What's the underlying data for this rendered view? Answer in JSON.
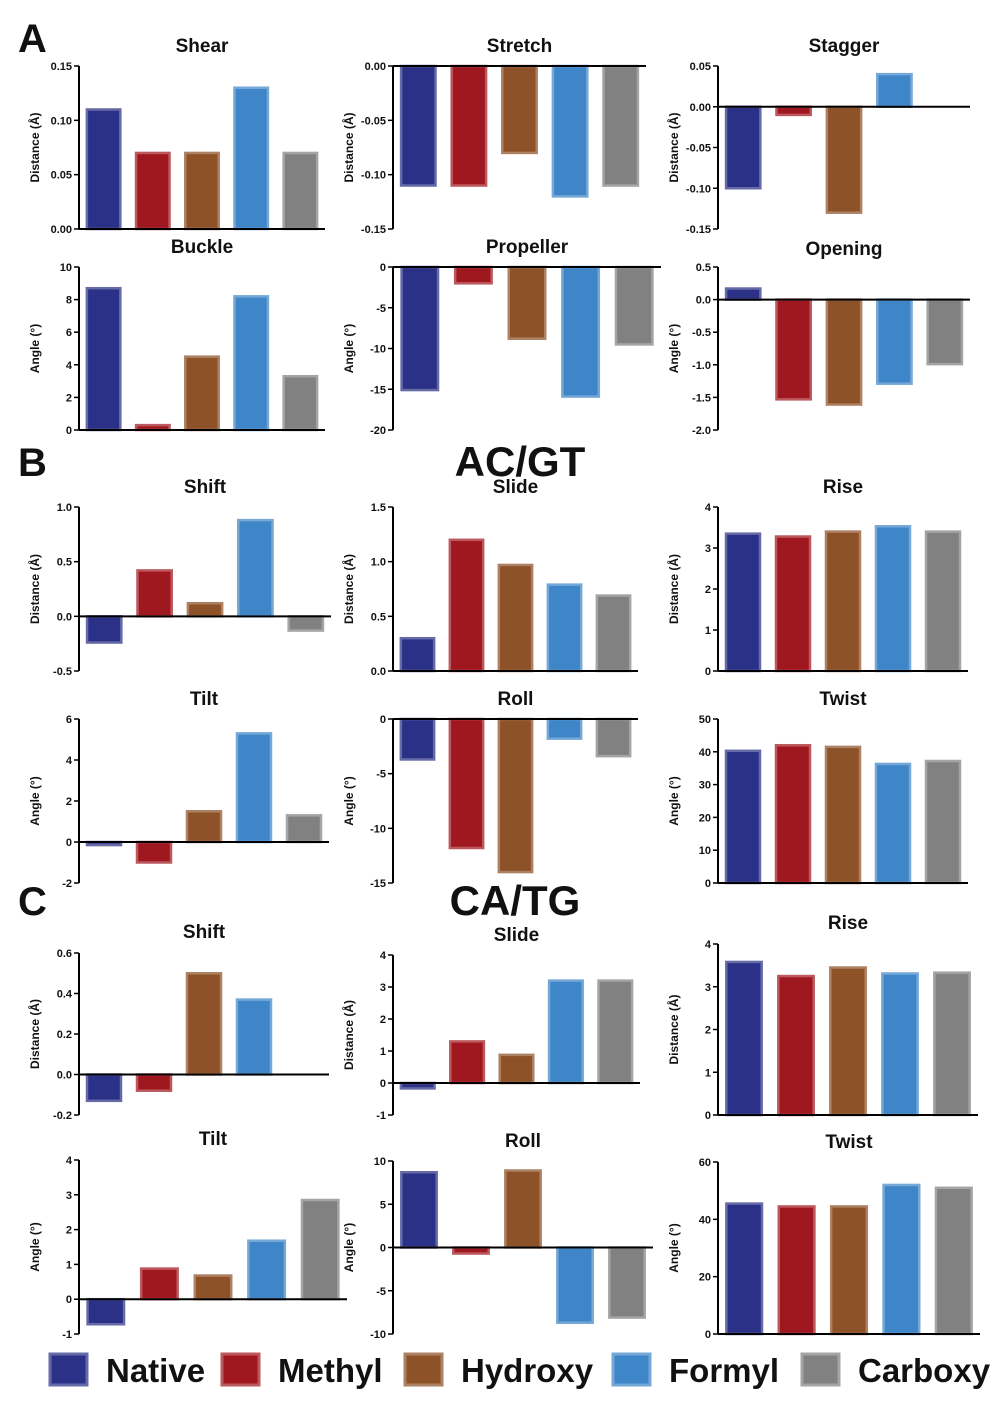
{
  "panel_labels": [
    "A",
    "B",
    "C"
  ],
  "headings": [
    "AC/GT",
    "CA/TG"
  ],
  "legend": [
    {
      "name": "Native",
      "color": "#2b3186"
    },
    {
      "name": "Methyl",
      "color": "#a0181f"
    },
    {
      "name": "Hydroxy",
      "color": "#8d5228"
    },
    {
      "name": "Formyl",
      "color": "#3f86c8"
    },
    {
      "name": "Carboxy",
      "color": "#818181"
    }
  ],
  "chart_data": [
    {
      "type": "bar",
      "group": "A",
      "title": "Shear",
      "ylabel": "Distance (Å)",
      "ylim": [
        0,
        0.15
      ],
      "yticks": [
        "0.00",
        "0.05",
        "0.10",
        "0.15"
      ],
      "categories": [
        "Native",
        "Methyl",
        "Hydroxy",
        "Formyl",
        "Carboxy"
      ],
      "values": [
        0.11,
        0.07,
        0.07,
        0.13,
        0.07
      ]
    },
    {
      "type": "bar",
      "group": "A",
      "title": "Stretch",
      "ylabel": "Distance (Å)",
      "ylim": [
        -0.15,
        0
      ],
      "yticks": [
        "-0.15",
        "-0.10",
        "-0.05",
        "0.00"
      ],
      "categories": [
        "Native",
        "Methyl",
        "Hydroxy",
        "Formyl",
        "Carboxy"
      ],
      "values": [
        -0.11,
        -0.11,
        -0.08,
        -0.12,
        -0.11
      ]
    },
    {
      "type": "bar",
      "group": "A",
      "title": "Stagger",
      "ylabel": "Distance (Å)",
      "ylim": [
        -0.15,
        0.05
      ],
      "yticks": [
        "-0.15",
        "-0.10",
        "-0.05",
        "0.00",
        "0.05"
      ],
      "categories": [
        "Native",
        "Methyl",
        "Hydroxy",
        "Formyl",
        "Carboxy"
      ],
      "values": [
        -0.1,
        -0.01,
        -0.13,
        0.04,
        0
      ]
    },
    {
      "type": "bar",
      "group": "A",
      "title": "Buckle",
      "ylabel": "Angle (°)",
      "ylim": [
        0,
        10
      ],
      "yticks": [
        "0",
        "2",
        "4",
        "6",
        "8",
        "10"
      ],
      "categories": [
        "Native",
        "Methyl",
        "Hydroxy",
        "Formyl",
        "Carboxy"
      ],
      "values": [
        8.7,
        0.3,
        4.5,
        8.2,
        3.3
      ]
    },
    {
      "type": "bar",
      "group": "A",
      "title": "Propeller",
      "ylabel": "Angle (°)",
      "ylim": [
        -20,
        0
      ],
      "yticks": [
        "-20",
        "-15",
        "-10",
        "-5",
        "0"
      ],
      "categories": [
        "Native",
        "Methyl",
        "Hydroxy",
        "Formyl",
        "Carboxy"
      ],
      "values": [
        -15.1,
        -2.0,
        -8.8,
        -15.9,
        -9.5
      ]
    },
    {
      "type": "bar",
      "group": "A",
      "title": "Opening",
      "ylabel": "Angle (°)",
      "ylim": [
        -2.0,
        0.5
      ],
      "yticks": [
        "-2.0",
        "-1.5",
        "-1.0",
        "-0.5",
        "0.0",
        "0.5"
      ],
      "categories": [
        "Native",
        "Methyl",
        "Hydroxy",
        "Formyl",
        "Carboxy"
      ],
      "values": [
        0.17,
        -1.53,
        -1.61,
        -1.29,
        -0.99
      ]
    },
    {
      "type": "bar",
      "group": "B",
      "title": "Shift",
      "ylabel": "Distance (Å)",
      "ylim": [
        -0.5,
        1.0
      ],
      "yticks": [
        "-0.5",
        "0.0",
        "0.5",
        "1.0"
      ],
      "categories": [
        "Native",
        "Methyl",
        "Hydroxy",
        "Formyl",
        "Carboxy"
      ],
      "values": [
        -0.24,
        0.42,
        0.12,
        0.88,
        -0.13
      ]
    },
    {
      "type": "bar",
      "group": "B",
      "title": "Slide",
      "ylabel": "Distance (Å)",
      "ylim": [
        0,
        1.5
      ],
      "yticks": [
        "0.0",
        "0.5",
        "1.0",
        "1.5"
      ],
      "categories": [
        "Native",
        "Methyl",
        "Hydroxy",
        "Formyl",
        "Carboxy"
      ],
      "values": [
        0.3,
        1.2,
        0.97,
        0.79,
        0.69
      ]
    },
    {
      "type": "bar",
      "group": "B",
      "title": "Rise",
      "ylabel": "Distance (Å)",
      "ylim": [
        0,
        4
      ],
      "yticks": [
        "0",
        "1",
        "2",
        "3",
        "4"
      ],
      "categories": [
        "Native",
        "Methyl",
        "Hydroxy",
        "Formyl",
        "Carboxy"
      ],
      "values": [
        3.35,
        3.28,
        3.4,
        3.53,
        3.4
      ]
    },
    {
      "type": "bar",
      "group": "B",
      "title": "Tilt",
      "ylabel": "Angle (°)",
      "ylim": [
        -2,
        6
      ],
      "yticks": [
        "-2",
        "0",
        "2",
        "4",
        "6"
      ],
      "categories": [
        "Native",
        "Methyl",
        "Hydroxy",
        "Formyl",
        "Carboxy"
      ],
      "values": [
        -0.15,
        -1.0,
        1.5,
        5.3,
        1.3
      ]
    },
    {
      "type": "bar",
      "group": "B",
      "title": "Roll",
      "ylabel": "Angle (°)",
      "ylim": [
        -15,
        0
      ],
      "yticks": [
        "-15",
        "-10",
        "-5",
        "0"
      ],
      "categories": [
        "Native",
        "Methyl",
        "Hydroxy",
        "Formyl",
        "Carboxy"
      ],
      "values": [
        -3.7,
        -11.8,
        -14.0,
        -1.8,
        -3.4
      ]
    },
    {
      "type": "bar",
      "group": "B",
      "title": "Twist",
      "ylabel": "Angle (°)",
      "ylim": [
        0,
        50
      ],
      "yticks": [
        "0",
        "10",
        "20",
        "30",
        "40",
        "50"
      ],
      "categories": [
        "Native",
        "Methyl",
        "Hydroxy",
        "Formyl",
        "Carboxy"
      ],
      "values": [
        40.3,
        42.0,
        41.5,
        36.3,
        37.2
      ]
    },
    {
      "type": "bar",
      "group": "C",
      "title": "Shift",
      "ylabel": "Distance (Å)",
      "ylim": [
        -0.2,
        0.6
      ],
      "yticks": [
        "-0.2",
        "0.0",
        "0.2",
        "0.4",
        "0.6"
      ],
      "categories": [
        "Native",
        "Methyl",
        "Hydroxy",
        "Formyl",
        "Carboxy"
      ],
      "values": [
        -0.13,
        -0.08,
        0.5,
        0.37,
        0
      ]
    },
    {
      "type": "bar",
      "group": "C",
      "title": "Slide",
      "ylabel": "Distance (Å)",
      "ylim": [
        -1,
        4
      ],
      "yticks": [
        "-1",
        "0",
        "1",
        "2",
        "3",
        "4"
      ],
      "categories": [
        "Native",
        "Methyl",
        "Hydroxy",
        "Formyl",
        "Carboxy"
      ],
      "values": [
        -0.17,
        1.3,
        0.88,
        3.2,
        3.2
      ]
    },
    {
      "type": "bar",
      "group": "C",
      "title": "Rise",
      "ylabel": "Distance (Å)",
      "ylim": [
        0,
        4
      ],
      "yticks": [
        "0",
        "1",
        "2",
        "3",
        "4"
      ],
      "categories": [
        "Native",
        "Methyl",
        "Hydroxy",
        "Formyl",
        "Carboxy"
      ],
      "values": [
        3.58,
        3.25,
        3.45,
        3.31,
        3.33
      ]
    },
    {
      "type": "bar",
      "group": "C",
      "title": "Tilt",
      "ylabel": "Angle (°)",
      "ylim": [
        -1,
        4
      ],
      "yticks": [
        "-1",
        "0",
        "1",
        "2",
        "3",
        "4"
      ],
      "categories": [
        "Native",
        "Methyl",
        "Hydroxy",
        "Formyl",
        "Carboxy"
      ],
      "values": [
        -0.72,
        0.88,
        0.68,
        1.68,
        2.85
      ]
    },
    {
      "type": "bar",
      "group": "C",
      "title": "Roll",
      "ylabel": "Angle (°)",
      "ylim": [
        -10,
        10
      ],
      "yticks": [
        "-10",
        "-5",
        "0",
        "5",
        "10"
      ],
      "categories": [
        "Native",
        "Methyl",
        "Hydroxy",
        "Formyl",
        "Carboxy"
      ],
      "values": [
        8.7,
        -0.7,
        8.9,
        -8.7,
        -8.1
      ]
    },
    {
      "type": "bar",
      "group": "C",
      "title": "Twist",
      "ylabel": "Angle (°)",
      "ylim": [
        0,
        60
      ],
      "yticks": [
        "0",
        "20",
        "40",
        "60"
      ],
      "categories": [
        "Native",
        "Methyl",
        "Hydroxy",
        "Formyl",
        "Carboxy"
      ],
      "values": [
        45.5,
        44.5,
        44.5,
        52.0,
        51.0
      ]
    }
  ]
}
